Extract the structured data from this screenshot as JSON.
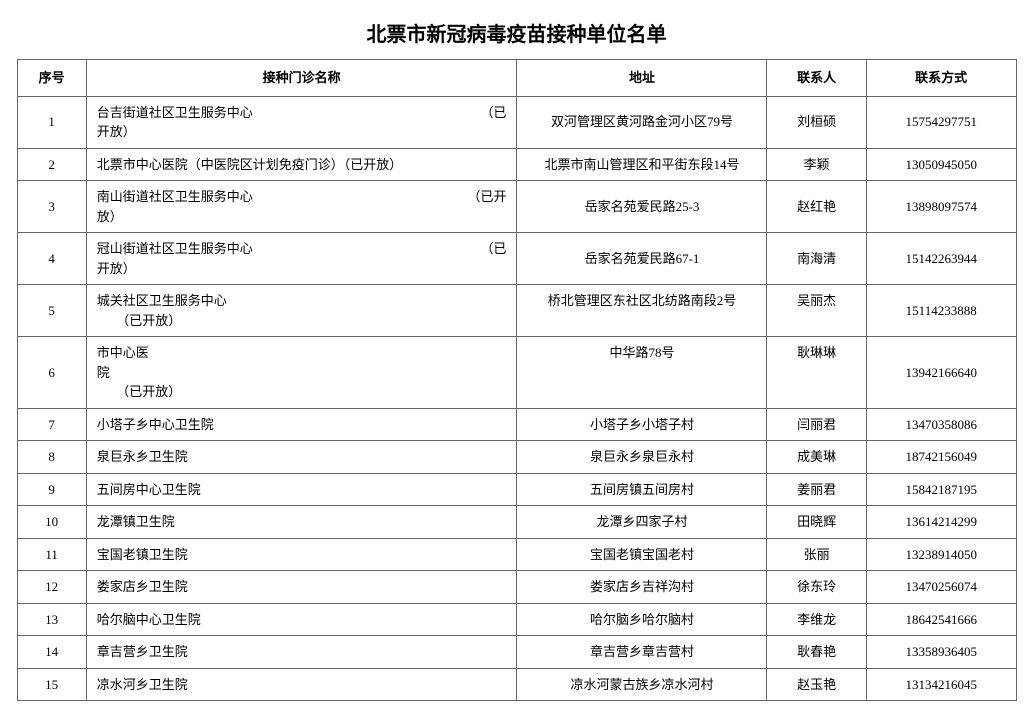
{
  "title": "北票市新冠病毒疫苗接种单位名单",
  "table": {
    "columns": [
      "序号",
      "接种门诊名称",
      "地址",
      "联系人",
      "联系方式"
    ],
    "rows": [
      {
        "seq": "1",
        "name_line1": "台吉街道社区卫生服务中心",
        "name_tag": "（已",
        "name_line2": "开放）",
        "addr": "双河管理区黄河路金河小区79号",
        "contact": "刘桓硕",
        "phone": "15754297751",
        "multiline": true,
        "justify": true
      },
      {
        "seq": "2",
        "name": "北票市中心医院（中医院区计划免疫门诊）（已开放）",
        "addr": "北票市南山管理区和平街东段14号",
        "contact": "李颖",
        "phone": "13050945050"
      },
      {
        "seq": "3",
        "name_line1": "南山街道社区卫生服务中心",
        "name_tag": "（已开",
        "name_line2": "放）",
        "addr": "岳家名苑爱民路25-3",
        "contact": "赵红艳",
        "phone": "13898097574",
        "multiline": true,
        "justify": true
      },
      {
        "seq": "4",
        "name_line1": "冠山街道社区卫生服务中心",
        "name_tag": "（已",
        "name_line2": "开放）",
        "addr": "岳家名苑爱民路67-1",
        "contact": "南海清",
        "phone": "15142263944",
        "multiline": true,
        "justify": true
      },
      {
        "seq": "5",
        "name_line1": "城关社区卫生服务中心",
        "name_line2_indent": "（已开放）",
        "addr": "桥北管理区东社区北纺路南段2号",
        "contact": "吴丽杰",
        "phone": "15114233888",
        "multiline": true,
        "justify": false,
        "valign_top": true
      },
      {
        "seq": "6",
        "name_line1": "市中心医",
        "name_line2": "院",
        "name_line3_indent": "（已开放）",
        "addr": "中华路78号",
        "contact": "耿琳琳",
        "phone": "13942166640",
        "multiline": true,
        "justify": false,
        "valign_top": true
      },
      {
        "seq": "7",
        "name": "小塔子乡中心卫生院",
        "addr": "小塔子乡小塔子村",
        "contact": "闫丽君",
        "phone": "13470358086"
      },
      {
        "seq": "8",
        "name": "泉巨永乡卫生院",
        "addr": "泉巨永乡泉巨永村",
        "contact": "成美琳",
        "phone": "18742156049"
      },
      {
        "seq": "9",
        "name": "五间房中心卫生院",
        "addr": "五间房镇五间房村",
        "contact": "姜丽君",
        "phone": "15842187195"
      },
      {
        "seq": "10",
        "name": "龙潭镇卫生院",
        "addr": "龙潭乡四家子村",
        "contact": "田晓辉",
        "phone": "13614214299"
      },
      {
        "seq": "11",
        "name": "宝国老镇卫生院",
        "addr": "宝国老镇宝国老村",
        "contact": "张丽",
        "phone": "13238914050"
      },
      {
        "seq": "12",
        "name": "娄家店乡卫生院",
        "addr": "娄家店乡吉祥沟村",
        "contact": "徐东玲",
        "phone": "13470256074"
      },
      {
        "seq": "13",
        "name": "哈尔脑中心卫生院",
        "addr": "哈尔脑乡哈尔脑村",
        "contact": "李维龙",
        "phone": "18642541666"
      },
      {
        "seq": "14",
        "name": "章吉营乡卫生院",
        "addr": "章吉营乡章吉营村",
        "contact": "耿春艳",
        "phone": "13358936405"
      },
      {
        "seq": "15",
        "name": "凉水河乡卫生院",
        "addr": "凉水河蒙古族乡凉水河村",
        "contact": "赵玉艳",
        "phone": "13134216045"
      }
    ]
  },
  "colors": {
    "border": "#666666",
    "background": "#ffffff",
    "text": "#000000"
  }
}
